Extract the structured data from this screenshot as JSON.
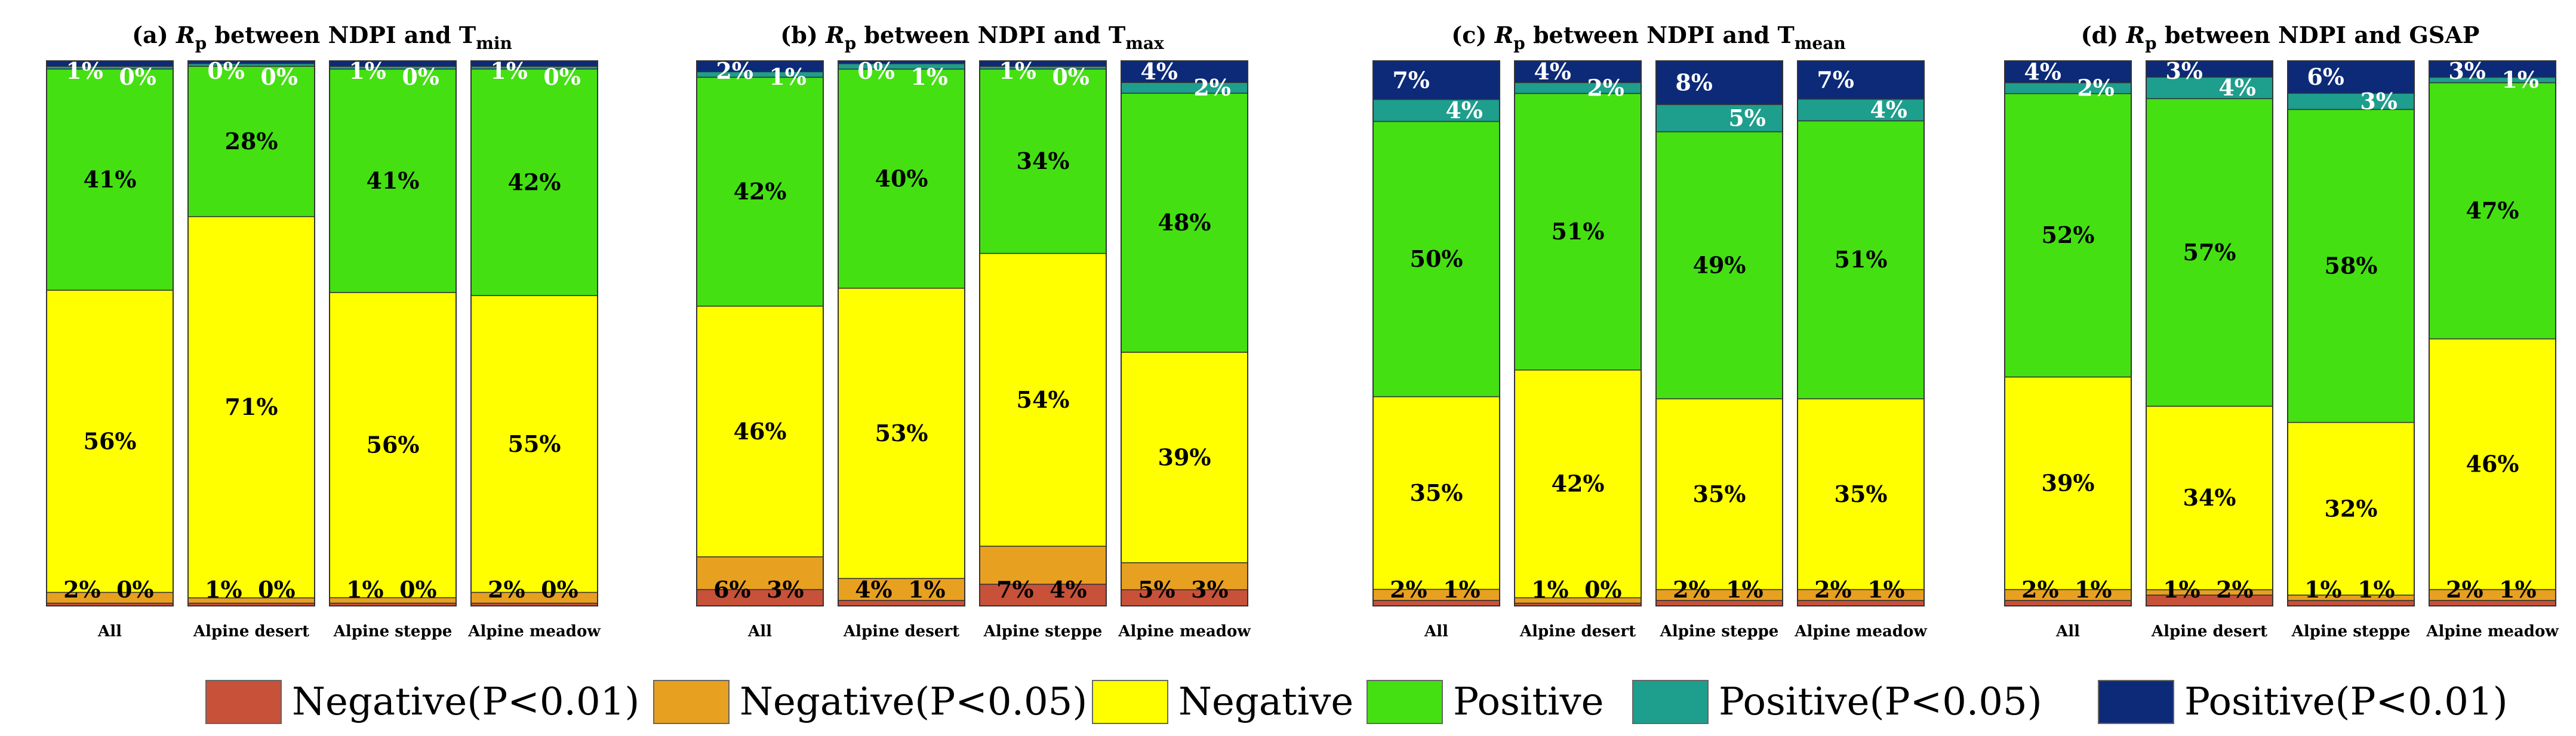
{
  "colors": {
    "neg001": "#c8513a",
    "neg005": "#e8a020",
    "neg": "#ffff00",
    "pos": "#44e012",
    "pos005": "#1e9e8c",
    "pos001": "#0c2a78"
  },
  "legend": [
    {
      "key": "neg001",
      "label": "Negative(P<0.01)"
    },
    {
      "key": "neg005",
      "label": "Negative(P<0.05)"
    },
    {
      "key": "neg",
      "label": "Negative"
    },
    {
      "key": "pos",
      "label": "Positive"
    },
    {
      "key": "pos005",
      "label": "Positive(P<0.05)"
    },
    {
      "key": "pos001",
      "label": "Positive(P<0.01)"
    }
  ],
  "chart_data": [
    {
      "type": "bar",
      "stacked": true,
      "title": "(a) Rp between NDPI and Tmin",
      "title_parts": {
        "prefix": "(a) ",
        "var": "R",
        "sub": "p",
        "middle": " between NDPI and T",
        "var_sub": "min"
      },
      "categories": [
        "All",
        "Alpine desert",
        "Alpine steppe",
        "Alpine meadow"
      ],
      "ylim": [
        0,
        100
      ],
      "series": [
        {
          "key": "neg001",
          "name": "Negative(P<0.01)",
          "values": [
            0.5,
            0.5,
            0.5,
            0.5
          ],
          "labels": [
            "0%",
            "0%",
            "0%",
            "0%"
          ]
        },
        {
          "key": "neg005",
          "name": "Negative(P<0.05)",
          "values": [
            2,
            1,
            1,
            2
          ],
          "labels": [
            "2%",
            "1%",
            "1%",
            "2%"
          ]
        },
        {
          "key": "neg",
          "name": "Negative",
          "values": [
            56,
            71,
            56,
            55
          ],
          "labels": [
            "56%",
            "71%",
            "56%",
            "55%"
          ]
        },
        {
          "key": "pos",
          "name": "Positive",
          "values": [
            41,
            28,
            41,
            42
          ],
          "labels": [
            "41%",
            "28%",
            "41%",
            "42%"
          ]
        },
        {
          "key": "pos005",
          "name": "Positive(P<0.05)",
          "values": [
            0.5,
            0.5,
            0.5,
            0.5
          ],
          "labels": [
            "0%",
            "0%",
            "0%",
            "0%"
          ]
        },
        {
          "key": "pos001",
          "name": "Positive(P<0.01)",
          "values": [
            1,
            0.5,
            1,
            1
          ],
          "labels": [
            "1%",
            "0%",
            "1%",
            "1%"
          ]
        }
      ]
    },
    {
      "type": "bar",
      "stacked": true,
      "title": "(b) Rp between NDPI and Tmax",
      "title_parts": {
        "prefix": "(b) ",
        "var": "R",
        "sub": "p",
        "middle": " between NDPI and T",
        "var_sub": "max"
      },
      "categories": [
        "All",
        "Alpine desert",
        "Alpine steppe",
        "Alpine meadow"
      ],
      "ylim": [
        0,
        100
      ],
      "series": [
        {
          "key": "neg001",
          "name": "Negative(P<0.01)",
          "values": [
            3,
            1,
            4,
            3
          ],
          "labels": [
            "3%",
            "1%",
            "4%",
            "3%"
          ]
        },
        {
          "key": "neg005",
          "name": "Negative(P<0.05)",
          "values": [
            6,
            4,
            7,
            5
          ],
          "labels": [
            "6%",
            "4%",
            "7%",
            "5%"
          ]
        },
        {
          "key": "neg",
          "name": "Negative",
          "values": [
            46,
            53,
            54,
            39
          ],
          "labels": [
            "46%",
            "53%",
            "54%",
            "39%"
          ]
        },
        {
          "key": "pos",
          "name": "Positive",
          "values": [
            42,
            40,
            34,
            48
          ],
          "labels": [
            "42%",
            "40%",
            "34%",
            "48%"
          ]
        },
        {
          "key": "pos005",
          "name": "Positive(P<0.05)",
          "values": [
            1,
            1,
            0.5,
            2
          ],
          "labels": [
            "1%",
            "1%",
            "0%",
            "2%"
          ]
        },
        {
          "key": "pos001",
          "name": "Positive(P<0.01)",
          "values": [
            2,
            0.5,
            1,
            4
          ],
          "labels": [
            "2%",
            "0%",
            "1%",
            "4%"
          ]
        }
      ]
    },
    {
      "type": "bar",
      "stacked": true,
      "title": "(c) Rp between NDPI and Tmean",
      "title_parts": {
        "prefix": "(c) ",
        "var": "R",
        "sub": "p",
        "middle": " between NDPI and T",
        "var_sub": "mean"
      },
      "categories": [
        "All",
        "Alpine desert",
        "Alpine steppe",
        "Alpine meadow"
      ],
      "ylim": [
        0,
        100
      ],
      "series": [
        {
          "key": "neg001",
          "name": "Negative(P<0.01)",
          "values": [
            1,
            0.5,
            1,
            1
          ],
          "labels": [
            "1%",
            "0%",
            "1%",
            "1%"
          ]
        },
        {
          "key": "neg005",
          "name": "Negative(P<0.05)",
          "values": [
            2,
            1,
            2,
            2
          ],
          "labels": [
            "2%",
            "1%",
            "2%",
            "2%"
          ]
        },
        {
          "key": "neg",
          "name": "Negative",
          "values": [
            35,
            42,
            35,
            35
          ],
          "labels": [
            "35%",
            "42%",
            "35%",
            "35%"
          ]
        },
        {
          "key": "pos",
          "name": "Positive",
          "values": [
            50,
            51,
            49,
            51
          ],
          "labels": [
            "50%",
            "51%",
            "49%",
            "51%"
          ]
        },
        {
          "key": "pos005",
          "name": "Positive(P<0.05)",
          "values": [
            4,
            2,
            5,
            4
          ],
          "labels": [
            "4%",
            "2%",
            "5%",
            "4%"
          ]
        },
        {
          "key": "pos001",
          "name": "Positive(P<0.01)",
          "values": [
            7,
            4,
            8,
            7
          ],
          "labels": [
            "7%",
            "4%",
            "8%",
            "7%"
          ]
        }
      ]
    },
    {
      "type": "bar",
      "stacked": true,
      "title": "(d) Rp between NDPI and GSAP",
      "title_parts": {
        "prefix": "(d) ",
        "var": "R",
        "sub": "p",
        "middle": " between NDPI and GSAP",
        "var_sub": ""
      },
      "categories": [
        "All",
        "Alpine desert",
        "Alpine steppe",
        "Alpine meadow"
      ],
      "ylim": [
        0,
        100
      ],
      "series": [
        {
          "key": "neg001",
          "name": "Negative(P<0.01)",
          "values": [
            1,
            2,
            1,
            1
          ],
          "labels": [
            "1%",
            "2%",
            "1%",
            "1%"
          ]
        },
        {
          "key": "neg005",
          "name": "Negative(P<0.05)",
          "values": [
            2,
            1,
            1,
            2
          ],
          "labels": [
            "2%",
            "1%",
            "1%",
            "2%"
          ]
        },
        {
          "key": "neg",
          "name": "Negative",
          "values": [
            39,
            34,
            32,
            46
          ],
          "labels": [
            "39%",
            "34%",
            "32%",
            "46%"
          ]
        },
        {
          "key": "pos",
          "name": "Positive",
          "values": [
            52,
            57,
            58,
            47
          ],
          "labels": [
            "52%",
            "57%",
            "58%",
            "47%"
          ]
        },
        {
          "key": "pos005",
          "name": "Positive(P<0.05)",
          "values": [
            2,
            4,
            3,
            1
          ],
          "labels": [
            "2%",
            "4%",
            "3%",
            "1%"
          ]
        },
        {
          "key": "pos001",
          "name": "Positive(P<0.01)",
          "values": [
            4,
            3,
            6,
            3
          ],
          "labels": [
            "4%",
            "3%",
            "6%",
            "3%"
          ]
        }
      ]
    }
  ]
}
